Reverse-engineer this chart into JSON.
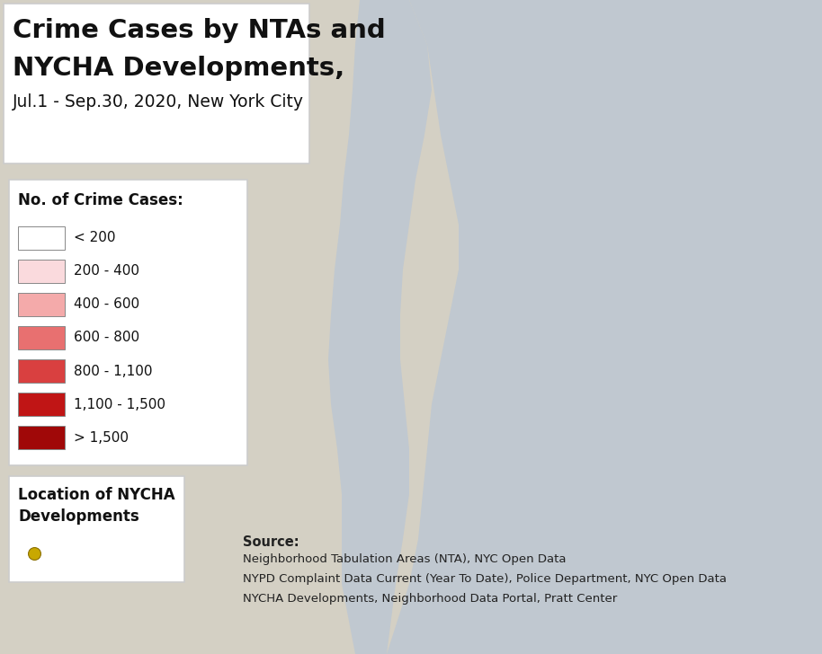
{
  "title_line1": "Crime Cases by NTAs and",
  "title_line2": "NYCHA Developments,",
  "title_line3": "Jul.1 - Sep.30, 2020, New York City",
  "legend_title": "No. of Crime Cases:",
  "legend_items": [
    {
      "label": "< 200",
      "facecolor": "#FFFFFF",
      "edgecolor": "#888888"
    },
    {
      "label": "200 - 400",
      "facecolor": "#FADADD",
      "edgecolor": "#888888"
    },
    {
      "label": "400 - 600",
      "facecolor": "#F4AAAA",
      "edgecolor": "#888888"
    },
    {
      "label": "600 - 800",
      "facecolor": "#E87070",
      "edgecolor": "#888888"
    },
    {
      "label": "800 - 1,100",
      "facecolor": "#D94040",
      "edgecolor": "#888888"
    },
    {
      "label": "1,100 - 1,500",
      "facecolor": "#C01515",
      "edgecolor": "#888888"
    },
    {
      "label": "> 1,500",
      "facecolor": "#A00808",
      "edgecolor": "#888888"
    }
  ],
  "nycha_legend_title_line1": "Location of NYCHA",
  "nycha_legend_title_line2": "Developments",
  "nycha_dot_color": "#C8A800",
  "nycha_dot_edgecolor": "#8B7000",
  "source_bold": "Source:",
  "source_lines": [
    "Neighborhood Tabulation Areas (NTA), NYC Open Data",
    "NYPD Complaint Data Current (Year To Date), Police Department, NYC Open Data",
    "NYCHA Developments, Neighborhood Data Portal, Pratt Center"
  ],
  "map_bg_color": "#D4D0C4",
  "map_water_color": "#C0C8D0",
  "map_road_color": "#FFFFFF",
  "map_text_color": "#8899AA",
  "box_bg": "#FFFFFF",
  "box_edge": "#CCCCCC",
  "text_color": "#111111",
  "source_color": "#222222",
  "figw": 9.14,
  "figh": 7.28,
  "dpi": 100
}
